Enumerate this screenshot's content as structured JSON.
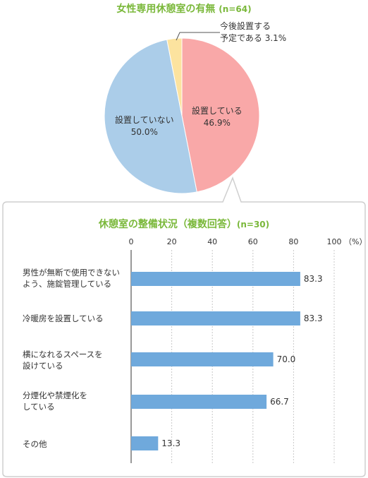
{
  "chart_data": [
    {
      "type": "pie",
      "title": "女性専用休憩室の有無",
      "n_label": "(n=64)",
      "slices": [
        {
          "name": "設置している",
          "value": 46.9,
          "value_label": "46.9%",
          "color": "#f9a8a8"
        },
        {
          "name": "設置していない",
          "value": 50.0,
          "value_label": "50.0%",
          "color": "#abcde9"
        },
        {
          "name": "今後設置する予定である",
          "name_lines": [
            "今後設置する",
            "予定である 3.1%"
          ],
          "value": 3.1,
          "value_label": "3.1%",
          "color": "#fce39f"
        }
      ]
    },
    {
      "type": "bar",
      "orientation": "horizontal",
      "title": "休憩室の整備状況（複数回答）",
      "n_label": "(n=30)",
      "unit_label": "（%）",
      "xlim": [
        0,
        100
      ],
      "ticks": [
        "0",
        "20",
        "40",
        "60",
        "80",
        "100"
      ],
      "tick_values": [
        0,
        20,
        40,
        60,
        80,
        100
      ],
      "bar_color": "#6fa9dc",
      "categories": [
        {
          "lines": [
            "男性が無断で使用できない",
            "よう、施錠管理している"
          ],
          "value": 83.3,
          "value_label": "83.3"
        },
        {
          "lines": [
            "冷暖房を設置している"
          ],
          "value": 83.3,
          "value_label": "83.3"
        },
        {
          "lines": [
            "横になれるスペースを",
            "設けている"
          ],
          "value": 70.0,
          "value_label": "70.0"
        },
        {
          "lines": [
            "分煙化や禁煙化を",
            "している"
          ],
          "value": 66.7,
          "value_label": "66.7"
        },
        {
          "lines": [
            "その他"
          ],
          "value": 13.3,
          "value_label": "13.3"
        }
      ]
    }
  ]
}
